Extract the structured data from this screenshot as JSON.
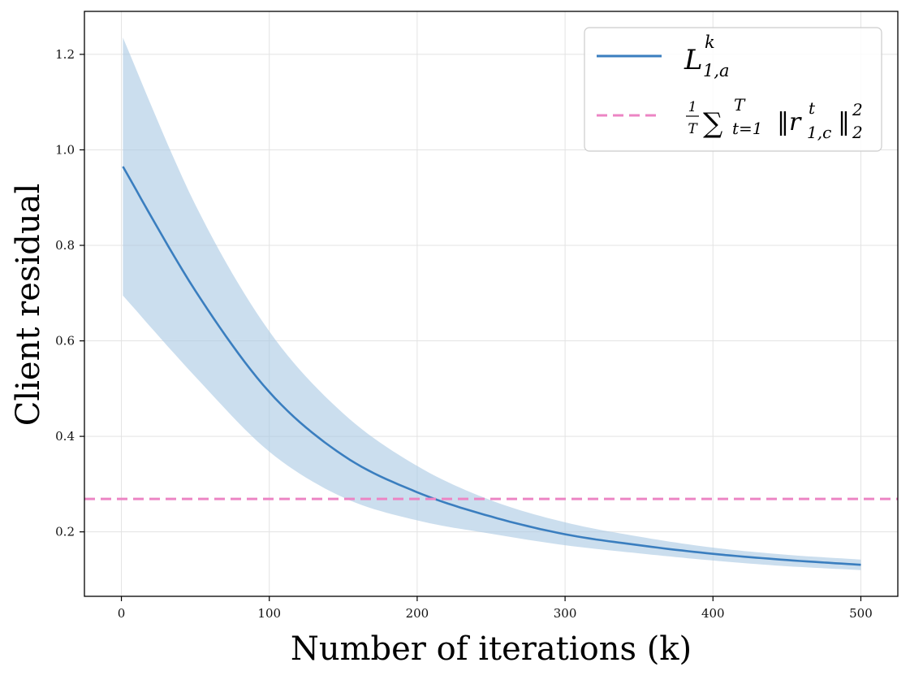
{
  "chart_data": {
    "type": "line",
    "title": "",
    "xlabel": "Number of iterations (k)",
    "ylabel": "Client residual",
    "xlim": [
      -25,
      525
    ],
    "ylim": [
      0.065,
      1.29
    ],
    "xticks": [
      0,
      100,
      200,
      300,
      400,
      500
    ],
    "yticks": [
      0.2,
      0.4,
      0.6,
      0.8,
      1.0,
      1.2
    ],
    "ytick_labels": [
      "0.2",
      "0.4",
      "0.6",
      "0.8",
      "1.0",
      "1.2"
    ],
    "grid": true,
    "legend_position": "top-right",
    "series": [
      {
        "name": "L_{1,a}^k",
        "legend_label": {
          "base": "L",
          "sup": "k",
          "sub": "1,a"
        },
        "style": "solid",
        "color": "#3a7ebf",
        "x": [
          1,
          50,
          100,
          150,
          200,
          250,
          300,
          350,
          400,
          450,
          500
        ],
        "values": [
          0.965,
          0.705,
          0.493,
          0.36,
          0.283,
          0.232,
          0.195,
          0.172,
          0.154,
          0.141,
          0.131
        ],
        "band_upper": [
          1.235,
          0.885,
          0.62,
          0.448,
          0.338,
          0.266,
          0.22,
          0.19,
          0.167,
          0.152,
          0.142
        ],
        "band_lower": [
          0.695,
          0.525,
          0.368,
          0.272,
          0.224,
          0.196,
          0.172,
          0.155,
          0.14,
          0.128,
          0.12
        ],
        "band_color": "#a9c8e2"
      },
      {
        "name": "1/T Σ_{t=1}^T ||r_{1,c}^t||_2^2",
        "legend_label": {
          "frac_num": "1",
          "frac_den": "T",
          "sum": "∑",
          "sum_sup": "T",
          "sum_sub": "t=1",
          "norm_open": "‖r",
          "norm_sup": "t",
          "norm_sub": "1,c",
          "norm_close": "‖",
          "outer_sup": "2",
          "outer_sub": "2"
        },
        "style": "dashed",
        "color": "#ec85c4",
        "y_constant": 0.269
      }
    ]
  }
}
